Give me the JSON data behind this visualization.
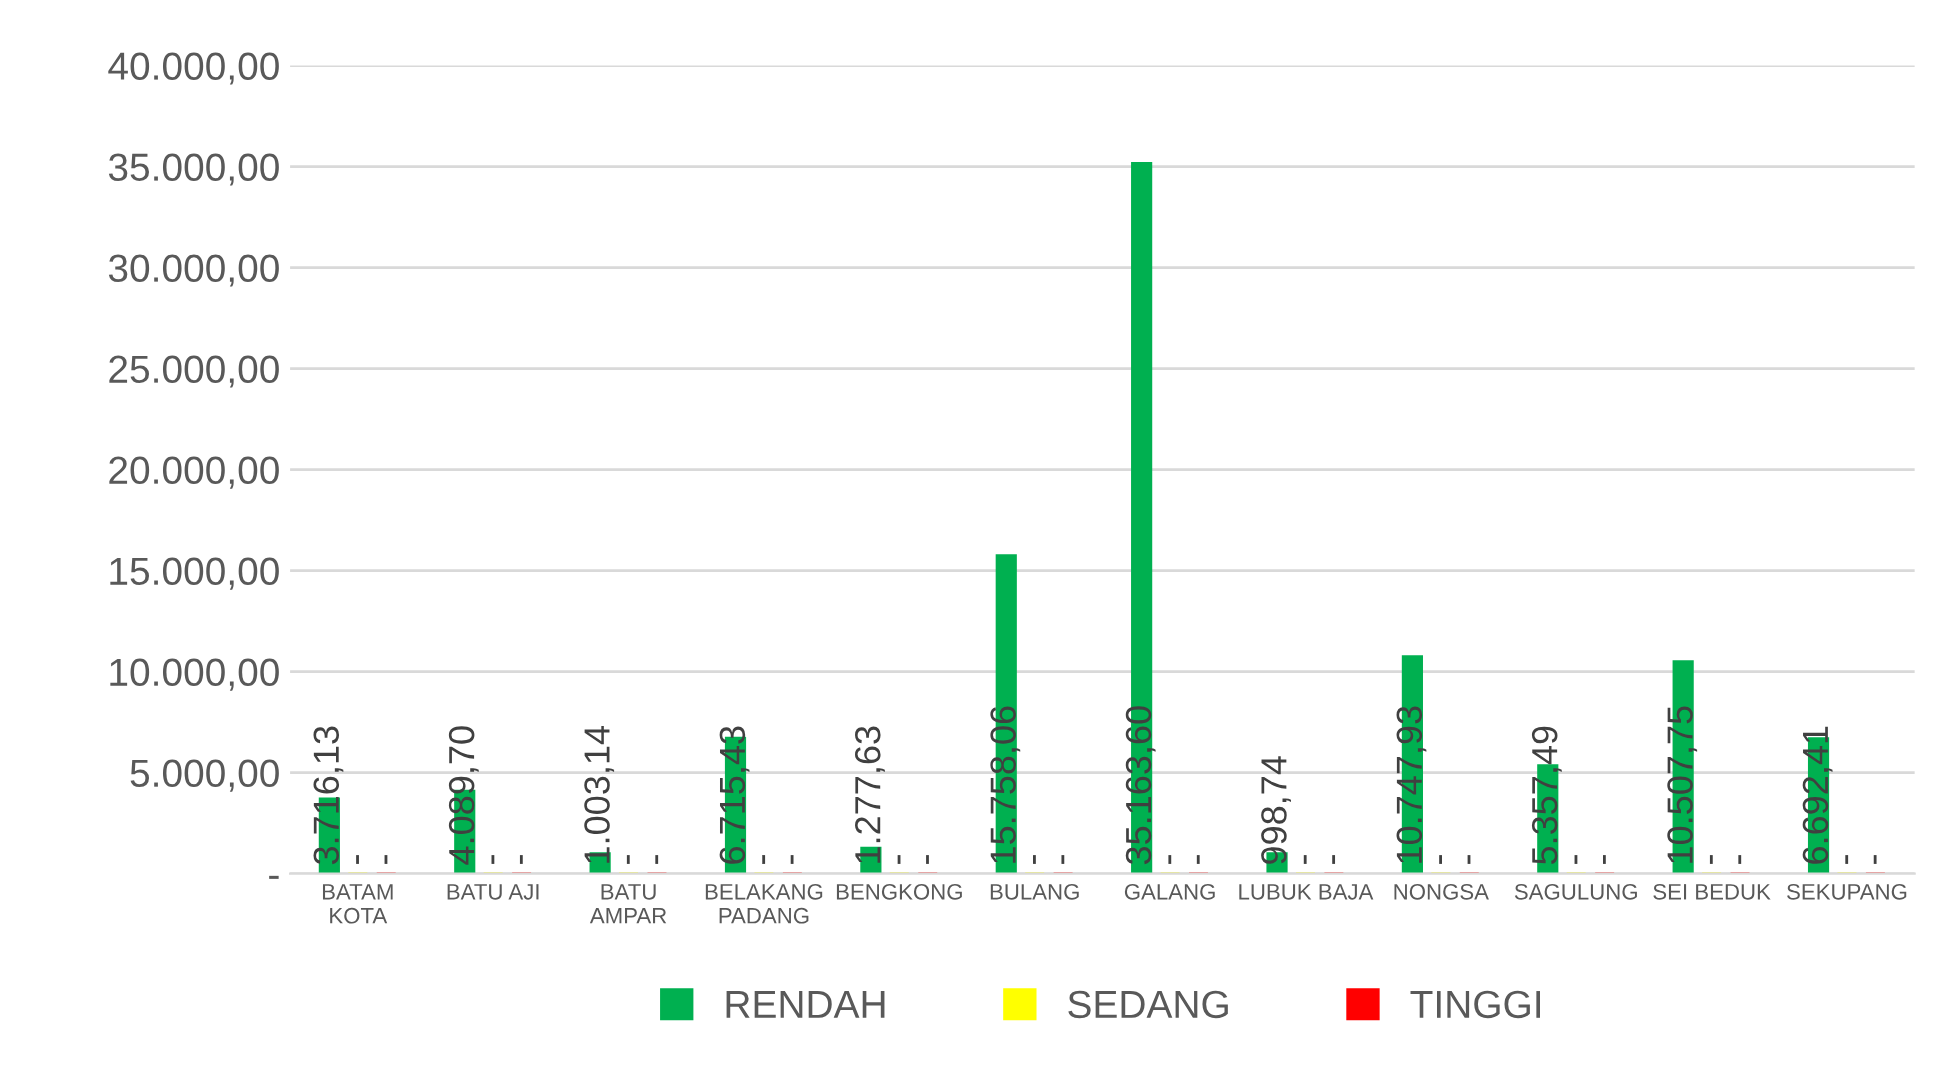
{
  "chart_data": {
    "type": "bar",
    "categories": [
      "BATAM\nKOTA",
      "BATU AJI",
      "BATU\nAMPAR",
      "BELAKANG\nPADANG",
      "BENGKONG",
      "BULANG",
      "GALANG",
      "LUBUK BAJA",
      "NONGSA",
      "SAGULUNG",
      "SEI BEDUK",
      "SEKUPANG"
    ],
    "series": [
      {
        "name": "RENDAH",
        "color": "#00b050",
        "values": [
          3716.13,
          4089.7,
          1003.14,
          6715.43,
          1277.63,
          15758.06,
          35163.6,
          998.74,
          10747.93,
          5357.49,
          10507.75,
          6692.41
        ],
        "value_labels": [
          "3.716,13",
          "4.089,70",
          "1.003,14",
          "6.715,43",
          "1.277,63",
          "15.758,06",
          "35.163,60",
          "998,74",
          "10.747,93",
          "5.357,49",
          "10.507,75",
          "6.692,41"
        ]
      },
      {
        "name": "SEDANG",
        "color": "#ffff00",
        "values": [
          0,
          0,
          0,
          0,
          0,
          0,
          0,
          0,
          0,
          0,
          0,
          0
        ],
        "value_labels": [
          "-",
          "-",
          "-",
          "-",
          "-",
          "-",
          "-",
          "-",
          "-",
          "-",
          "-",
          "-"
        ]
      },
      {
        "name": "TINGGI",
        "color": "#ff0000",
        "values": [
          0,
          0,
          0,
          0,
          0,
          0,
          0,
          0,
          0,
          0,
          0,
          0
        ],
        "value_labels": [
          "-",
          "-",
          "-",
          "-",
          "-",
          "-",
          "-",
          "-",
          "-",
          "-",
          "-",
          "-"
        ]
      }
    ],
    "ylim": [
      0,
      40000
    ],
    "yticks": [
      {
        "value": 0,
        "label": "-"
      },
      {
        "value": 5000,
        "label": "5.000,00"
      },
      {
        "value": 10000,
        "label": "10.000,00"
      },
      {
        "value": 15000,
        "label": "15.000,00"
      },
      {
        "value": 20000,
        "label": "20.000,00"
      },
      {
        "value": 25000,
        "label": "25.000,00"
      },
      {
        "value": 30000,
        "label": "30.000,00"
      },
      {
        "value": 35000,
        "label": "35.000,00"
      },
      {
        "value": 40000,
        "label": "40.000,00"
      }
    ],
    "grid": "y",
    "legend": "bottom"
  }
}
